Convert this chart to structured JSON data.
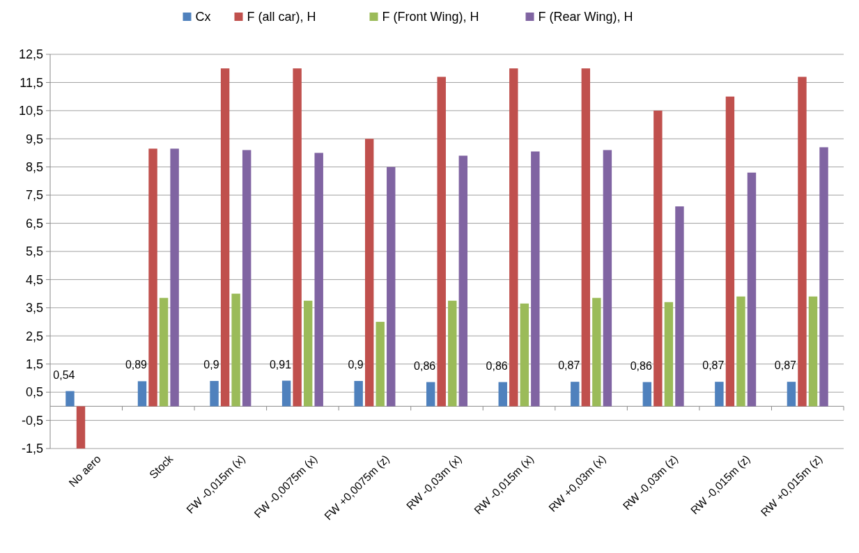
{
  "chart_data": {
    "type": "bar",
    "categories": [
      "No aero",
      "Stock",
      "FW -0,015m (x)",
      "FW -0,0075m (x)",
      "FW +0,0075m (z)",
      "RW -0,03m (x)",
      "RW -0,015m (x)",
      "RW +0,03m (x)",
      "RW -0,03m (z)",
      "RW -0,015m (z)",
      "RW +0,015m (z)"
    ],
    "series": [
      {
        "name": "Cx",
        "color": "#4f81bd",
        "values": [
          0.54,
          0.89,
          0.9,
          0.91,
          0.9,
          0.86,
          0.86,
          0.87,
          0.86,
          0.87,
          0.87
        ],
        "value_labels": [
          "0,54",
          "0,89",
          "0,9",
          "0,91",
          "0,9",
          "0,86",
          "0,86",
          "0,87",
          "0,86",
          "0,87",
          "0,87"
        ]
      },
      {
        "name": "F (all car), H",
        "color": "#c0504d",
        "values": [
          -1.5,
          9.15,
          12.0,
          12.0,
          9.5,
          11.7,
          12.0,
          12.0,
          10.5,
          11.0,
          11.7
        ]
      },
      {
        "name": "F (Front Wing), H",
        "color": "#9bbb59",
        "values": [
          null,
          3.85,
          4.0,
          3.75,
          3.0,
          3.75,
          3.65,
          3.85,
          3.7,
          3.9,
          3.9
        ]
      },
      {
        "name": "F (Rear Wing), H",
        "color": "#8064a2",
        "values": [
          null,
          9.15,
          9.1,
          9.0,
          8.5,
          8.9,
          9.05,
          9.1,
          7.1,
          8.3,
          9.2
        ]
      }
    ],
    "ylim": [
      -1.5,
      12.5
    ],
    "yticks": [
      {
        "value": -1.5,
        "label": "-1,5"
      },
      {
        "value": -0.5,
        "label": "-0,5"
      },
      {
        "value": 0.5,
        "label": "0,5"
      },
      {
        "value": 1.5,
        "label": "1,5"
      },
      {
        "value": 2.5,
        "label": "2,5"
      },
      {
        "value": 3.5,
        "label": "3,5"
      },
      {
        "value": 4.5,
        "label": "4,5"
      },
      {
        "value": 5.5,
        "label": "5,5"
      },
      {
        "value": 6.5,
        "label": "6,5"
      },
      {
        "value": 7.5,
        "label": "7,5"
      },
      {
        "value": 8.5,
        "label": "8,5"
      },
      {
        "value": 9.5,
        "label": "9,5"
      },
      {
        "value": 10.5,
        "label": "10,5"
      },
      {
        "value": 11.5,
        "label": "11,5"
      },
      {
        "value": 12.5,
        "label": "12,5"
      }
    ],
    "grid": "y",
    "legend": "top"
  }
}
